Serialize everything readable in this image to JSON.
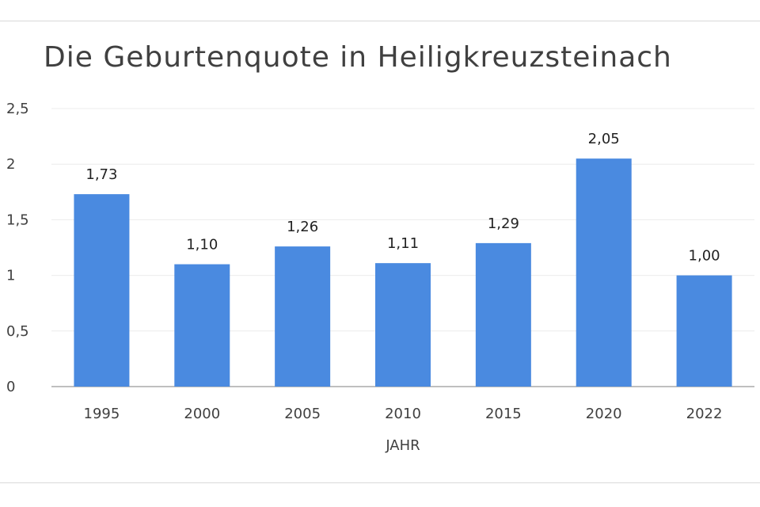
{
  "chart_data": {
    "type": "bar",
    "title": "Die Geburtenquote in Heiligkreuzsteinach",
    "xlabel": "JAHR",
    "ylabel": "",
    "categories": [
      "1995",
      "2000",
      "2005",
      "2010",
      "2015",
      "2020",
      "2022"
    ],
    "values": [
      1.73,
      1.1,
      1.26,
      1.11,
      1.29,
      2.05,
      1.0
    ],
    "value_labels": [
      "1,73",
      "1,10",
      "1,26",
      "1,11",
      "1,29",
      "2,05",
      "1,00"
    ],
    "yticks": [
      0,
      0.5,
      1,
      1.5,
      2,
      2.5
    ],
    "ytick_labels": [
      "0",
      "0,5",
      "1",
      "1,5",
      "2",
      "2,5"
    ],
    "ylim": [
      0,
      2.5
    ],
    "grid": true,
    "legend": "none",
    "colors": {
      "bar": "#4a8ae0",
      "grid": "#ececec",
      "axis": "#bfbfbf"
    }
  }
}
